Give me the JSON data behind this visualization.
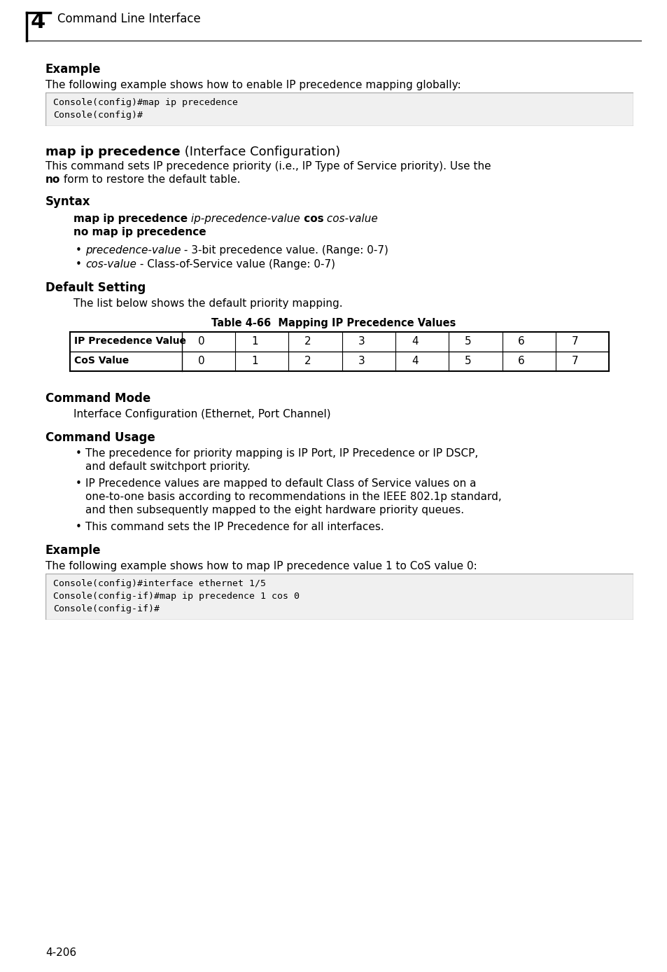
{
  "page_number": "4-206",
  "header_number": "4",
  "header_text": "Command Line Interface",
  "bg_color": "#ffffff",
  "section1_label": "Example",
  "section1_body": "The following example shows how to enable IP precedence mapping globally:",
  "code_box1_lines": [
    "Console(config)#map ip precedence",
    "Console(config)#"
  ],
  "section2_title_bold": "map ip precedence",
  "section2_title_normal": " (Interface Configuration)",
  "section2_body_line1": "This command sets IP precedence priority (i.e., IP Type of Service priority). Use the",
  "section2_body_line2_bold": "no",
  "section2_body_line2_rest": " form to restore the default table.",
  "syntax_label": "Syntax",
  "syntax_line1_bold": "map ip precedence",
  "syntax_line1_italic": " ip-precedence-value",
  "syntax_line1_bold2": " cos",
  "syntax_line1_italic2": " cos-value",
  "syntax_line2_bold": "no map ip precedence",
  "bullet1_italic": "precedence-value",
  "bullet1_rest": " - 3-bit precedence value. (Range: 0-7)",
  "bullet2_italic": "cos-value",
  "bullet2_rest": " - Class-of-Service value (Range: 0-7)",
  "default_label": "Default Setting",
  "default_body": "The list below shows the default priority mapping.",
  "table_caption": "Table 4-66  Mapping IP Precedence Values",
  "table_col1_header": "IP Precedence Value",
  "table_col2_header": "CoS Value",
  "table_values": [
    "0",
    "1",
    "2",
    "3",
    "4",
    "5",
    "6",
    "7"
  ],
  "cmdmode_label": "Command Mode",
  "cmdmode_body": "Interface Configuration (Ethernet, Port Channel)",
  "cmdusage_label": "Command Usage",
  "cmdusage_bullet1_line1": "The precedence for priority mapping is IP Port, IP Precedence or IP DSCP,",
  "cmdusage_bullet1_line2": "and default switchport priority.",
  "cmdusage_bullet2_line1": "IP Precedence values are mapped to default Class of Service values on a",
  "cmdusage_bullet2_line2": "one-to-one basis according to recommendations in the IEEE 802.1p standard,",
  "cmdusage_bullet2_line3": "and then subsequently mapped to the eight hardware priority queues.",
  "cmdusage_bullet3": "This command sets the IP Precedence for all interfaces.",
  "section_ex2_label": "Example",
  "section_ex2_body": "The following example shows how to map IP precedence value 1 to CoS value 0:",
  "code_box2_lines": [
    "Console(config)#interface ethernet 1/5",
    "Console(config-if)#map ip precedence 1 cos 0",
    "Console(config-if)#"
  ],
  "code_bg": "#f0f0f0",
  "code_border": "#aaaaaa",
  "code_font_size": 9.5,
  "body_font_size": 11,
  "label_font_size": 12
}
